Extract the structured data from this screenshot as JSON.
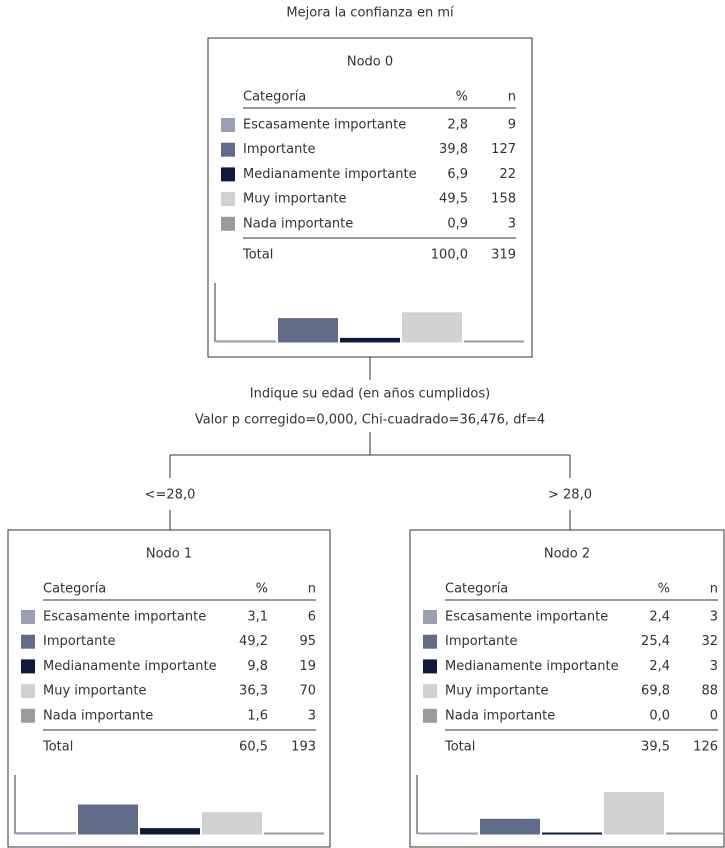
{
  "title": "Mejora la confianza en mí",
  "colors": [
    "#9a9fb3",
    "#5f6b89",
    "#0d1b3a",
    "#d0d1d3",
    "#9b9b9b"
  ],
  "nodes": [
    {
      "label": "Nodo 0",
      "header": [
        "Categoría",
        "%",
        "n"
      ],
      "rows": [
        {
          "category": "Escasamente importante",
          "pct": "2,8",
          "n": 9
        },
        {
          "category": "Importante",
          "pct": "39,8",
          "n": 127
        },
        {
          "category": "Medianamente importante",
          "pct": "6,9",
          "n": 22
        },
        {
          "category": "Muy importante",
          "pct": "49,5",
          "n": 158
        },
        {
          "category": "Nada importante",
          "pct": "0,9",
          "n": 3
        }
      ],
      "total": {
        "label": "Total",
        "pct": "100,0",
        "n": 319
      }
    },
    {
      "label": "Nodo 1",
      "header": [
        "Categoría",
        "%",
        "n"
      ],
      "rows": [
        {
          "category": "Escasamente importante",
          "pct": "3,1",
          "n": 6
        },
        {
          "category": "Importante",
          "pct": "49,2",
          "n": 95
        },
        {
          "category": "Medianamente importante",
          "pct": "9,8",
          "n": 19
        },
        {
          "category": "Muy importante",
          "pct": "36,3",
          "n": 70
        },
        {
          "category": "Nada importante",
          "pct": "1,6",
          "n": 3
        }
      ],
      "total": {
        "label": "Total",
        "pct": "60,5",
        "n": 193
      }
    },
    {
      "label": "Nodo 2",
      "header": [
        "Categoría",
        "%",
        "n"
      ],
      "rows": [
        {
          "category": "Escasamente importante",
          "pct": "2,4",
          "n": 3
        },
        {
          "category": "Importante",
          "pct": "25,4",
          "n": 32
        },
        {
          "category": "Medianamente importante",
          "pct": "2,4",
          "n": 3
        },
        {
          "category": "Muy importante",
          "pct": "69,8",
          "n": 88
        },
        {
          "category": "Nada importante",
          "pct": "0,0",
          "n": 0
        }
      ],
      "total": {
        "label": "Total",
        "pct": "39,5",
        "n": 126
      }
    }
  ],
  "split": {
    "variable": "Indique su edad (en años cumplidos)",
    "stats": "Valor p corregido=0,000, Chi-cuadrado=36,476, df=4"
  },
  "branches": [
    "<=28,0",
    "> 28,0"
  ]
}
